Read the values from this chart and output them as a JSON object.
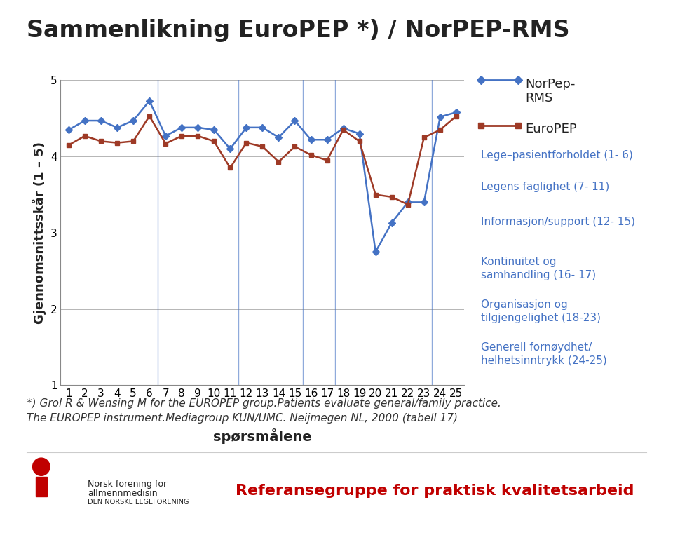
{
  "title": "Sammenlikning EuroPEP *) / NorPEP-RMS",
  "xlabel": "spørsmålene",
  "ylabel": "Gjennomsnittsskår (1 – 5)",
  "xlim": [
    0.5,
    25.5
  ],
  "ylim": [
    1,
    5
  ],
  "yticks": [
    1,
    2,
    3,
    4,
    5
  ],
  "xticks": [
    1,
    2,
    3,
    4,
    5,
    6,
    7,
    8,
    9,
    10,
    11,
    12,
    13,
    14,
    15,
    16,
    17,
    18,
    19,
    20,
    21,
    22,
    23,
    24,
    25
  ],
  "norpep_color": "#4472C4",
  "europep_color": "#9E3A26",
  "norpep_data": [
    4.35,
    4.47,
    4.47,
    4.38,
    4.47,
    4.73,
    4.27,
    4.38,
    4.38,
    4.35,
    4.1,
    4.38,
    4.38,
    4.25,
    4.47,
    4.22,
    4.22,
    4.37,
    4.3,
    2.75,
    3.13,
    3.4,
    3.4,
    4.52,
    4.58
  ],
  "europep_data": [
    4.15,
    4.27,
    4.2,
    4.18,
    4.2,
    4.53,
    4.17,
    4.27,
    4.27,
    4.2,
    3.85,
    4.18,
    4.13,
    3.93,
    4.13,
    4.02,
    3.95,
    4.35,
    4.2,
    3.5,
    3.47,
    3.37,
    4.25,
    4.35,
    4.53
  ],
  "vlines": [
    6.5,
    11.5,
    15.5,
    17.5,
    23.5
  ],
  "legend_labels": [
    "NorPep-\nRMS",
    "EuroPEP"
  ],
  "annotation_labels": [
    "Lege–pasientforholdet (1- 6)",
    "Legens faglighet (7- 11)",
    "Informasjon/support (12- 15)",
    "Kontinuitet og\nsamhandling (16- 17)",
    "Organisasjon og\ntilgjengelighet (18-23)",
    "Generell fornøydhet/\nhelhetsinntrykk (24-25)"
  ],
  "annotation_color": "#4472C4",
  "footnote_line1": "*) Grol R & Wensing M for the EUROPEP group.Patients evaluate general/family practice.",
  "footnote_line2": "The EUROPEP instrument.Mediagroup KUN/UMC. Neijmegen NL, 2000 (tabell 17)",
  "footer_text": "Referansegruppe for praktisk kvalitetsarbeid",
  "footer_color": "#C00000",
  "org_line1": "Norsk forening for",
  "org_line2": "allmennmedisin",
  "org_line3": "DEN NORSKE LEGEFORENING",
  "background_color": "#FFFFFF",
  "title_fontsize": 24,
  "axis_label_fontsize": 13,
  "tick_fontsize": 11,
  "legend_fontsize": 13,
  "annotation_fontsize": 11,
  "footnote_fontsize": 11,
  "footer_fontsize": 16,
  "org_fontsize": 9
}
